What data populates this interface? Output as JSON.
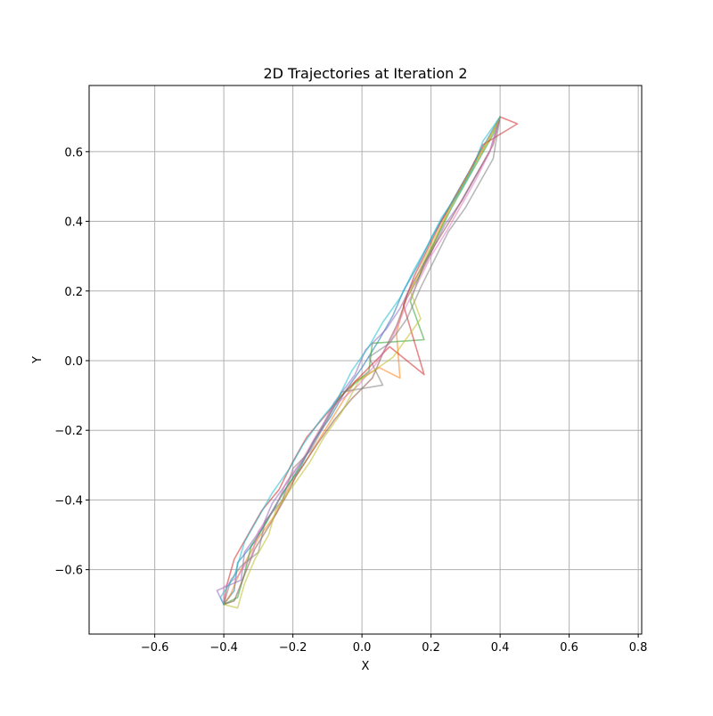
{
  "chart_data": {
    "type": "line",
    "title": "2D Trajectories at Iteration 2",
    "xlabel": "X",
    "ylabel": "Y",
    "xlim": [
      -0.79,
      0.81
    ],
    "ylim": [
      -0.785,
      0.79
    ],
    "xticks": [
      -0.6,
      -0.4,
      -0.2,
      0.0,
      0.2,
      0.4,
      0.6,
      0.8
    ],
    "xtick_labels": [
      "−0.6",
      "−0.4",
      "−0.2",
      "0.0",
      "0.2",
      "0.4",
      "0.6",
      "0.8"
    ],
    "yticks": [
      -0.6,
      -0.4,
      -0.2,
      0.0,
      0.2,
      0.4,
      0.6
    ],
    "ytick_labels": [
      "−0.6",
      "−0.4",
      "−0.2",
      "0.0",
      "0.2",
      "0.4",
      "0.6"
    ],
    "grid": true,
    "legend": "none",
    "series_opacity": 0.55,
    "start_point": [
      -0.4,
      -0.7
    ],
    "end_point": [
      0.4,
      0.7
    ],
    "approx_trajectory_count": 10,
    "colors": [
      "#1f77b4",
      "#ff7f0e",
      "#2ca02c",
      "#d62728",
      "#9467bd",
      "#8c564b",
      "#e377c2",
      "#7f7f7f",
      "#bcbd22",
      "#17becf"
    ],
    "series": [
      {
        "points": [
          [
            -0.4,
            -0.7
          ],
          [
            -0.37,
            -0.66
          ],
          [
            -0.36,
            -0.58
          ],
          [
            -0.31,
            -0.52
          ],
          [
            -0.27,
            -0.45
          ],
          [
            -0.23,
            -0.38
          ],
          [
            -0.18,
            -0.31
          ],
          [
            -0.14,
            -0.23
          ],
          [
            -0.09,
            -0.16
          ],
          [
            -0.05,
            -0.09
          ],
          [
            0.0,
            -0.02
          ],
          [
            0.05,
            0.06
          ],
          [
            0.09,
            0.13
          ],
          [
            0.12,
            0.2
          ],
          [
            0.16,
            0.27
          ],
          [
            0.2,
            0.35
          ],
          [
            0.24,
            0.42
          ],
          [
            0.28,
            0.49
          ],
          [
            0.32,
            0.56
          ],
          [
            0.36,
            0.63
          ],
          [
            0.4,
            0.7
          ]
        ]
      },
      {
        "points": [
          [
            -0.4,
            -0.7
          ],
          [
            -0.38,
            -0.67
          ],
          [
            -0.35,
            -0.6
          ],
          [
            -0.3,
            -0.51
          ],
          [
            -0.25,
            -0.44
          ],
          [
            -0.21,
            -0.36
          ],
          [
            -0.17,
            -0.3
          ],
          [
            -0.12,
            -0.22
          ],
          [
            -0.07,
            -0.14
          ],
          [
            -0.02,
            -0.06
          ],
          [
            0.05,
            -0.02
          ],
          [
            0.11,
            -0.05
          ],
          [
            0.1,
            0.08
          ],
          [
            0.13,
            0.19
          ],
          [
            0.17,
            0.26
          ],
          [
            0.21,
            0.34
          ],
          [
            0.25,
            0.43
          ],
          [
            0.29,
            0.5
          ],
          [
            0.33,
            0.57
          ],
          [
            0.37,
            0.64
          ],
          [
            0.4,
            0.7
          ]
        ]
      },
      {
        "points": [
          [
            -0.4,
            -0.7
          ],
          [
            -0.36,
            -0.68
          ],
          [
            -0.34,
            -0.61
          ],
          [
            -0.32,
            -0.53
          ],
          [
            -0.28,
            -0.47
          ],
          [
            -0.24,
            -0.4
          ],
          [
            -0.19,
            -0.32
          ],
          [
            -0.15,
            -0.25
          ],
          [
            -0.11,
            -0.18
          ],
          [
            -0.06,
            -0.1
          ],
          [
            0.02,
            -0.03
          ],
          [
            0.03,
            0.05
          ],
          [
            0.18,
            0.06
          ],
          [
            0.14,
            0.17
          ],
          [
            0.18,
            0.28
          ],
          [
            0.22,
            0.36
          ],
          [
            0.26,
            0.44
          ],
          [
            0.3,
            0.51
          ],
          [
            0.34,
            0.58
          ],
          [
            0.38,
            0.65
          ],
          [
            0.4,
            0.7
          ]
        ]
      },
      {
        "points": [
          [
            -0.4,
            -0.7
          ],
          [
            -0.39,
            -0.64
          ],
          [
            -0.37,
            -0.57
          ],
          [
            -0.33,
            -0.5
          ],
          [
            -0.29,
            -0.43
          ],
          [
            -0.24,
            -0.37
          ],
          [
            -0.2,
            -0.29
          ],
          [
            -0.16,
            -0.22
          ],
          [
            -0.1,
            -0.15
          ],
          [
            -0.04,
            -0.08
          ],
          [
            0.04,
            0.0
          ],
          [
            0.08,
            0.04
          ],
          [
            0.18,
            -0.04
          ],
          [
            0.12,
            0.16
          ],
          [
            0.15,
            0.24
          ],
          [
            0.19,
            0.32
          ],
          [
            0.23,
            0.4
          ],
          [
            0.27,
            0.47
          ],
          [
            0.31,
            0.54
          ],
          [
            0.35,
            0.62
          ],
          [
            0.45,
            0.68
          ],
          [
            0.4,
            0.7
          ]
        ]
      },
      {
        "points": [
          [
            -0.4,
            -0.7
          ],
          [
            -0.42,
            -0.66
          ],
          [
            -0.35,
            -0.63
          ],
          [
            -0.34,
            -0.55
          ],
          [
            -0.29,
            -0.48
          ],
          [
            -0.26,
            -0.41
          ],
          [
            -0.21,
            -0.34
          ],
          [
            -0.16,
            -0.27
          ],
          [
            -0.12,
            -0.2
          ],
          [
            -0.08,
            -0.12
          ],
          [
            -0.02,
            -0.04
          ],
          [
            0.01,
            0.03
          ],
          [
            0.07,
            0.09
          ],
          [
            0.11,
            0.15
          ],
          [
            0.15,
            0.23
          ],
          [
            0.2,
            0.31
          ],
          [
            0.24,
            0.39
          ],
          [
            0.29,
            0.46
          ],
          [
            0.33,
            0.53
          ],
          [
            0.37,
            0.6
          ],
          [
            0.4,
            0.7
          ]
        ]
      },
      {
        "points": [
          [
            -0.4,
            -0.7
          ],
          [
            -0.37,
            -0.69
          ],
          [
            -0.33,
            -0.59
          ],
          [
            -0.31,
            -0.54
          ],
          [
            -0.26,
            -0.46
          ],
          [
            -0.22,
            -0.39
          ],
          [
            -0.19,
            -0.33
          ],
          [
            -0.13,
            -0.24
          ],
          [
            -0.08,
            -0.17
          ],
          [
            -0.03,
            -0.11
          ],
          [
            0.03,
            -0.05
          ],
          [
            0.06,
            0.02
          ],
          [
            0.1,
            0.1
          ],
          [
            0.13,
            0.18
          ],
          [
            0.17,
            0.25
          ],
          [
            0.21,
            0.33
          ],
          [
            0.26,
            0.41
          ],
          [
            0.3,
            0.48
          ],
          [
            0.34,
            0.55
          ],
          [
            0.38,
            0.62
          ],
          [
            0.4,
            0.7
          ]
        ]
      },
      {
        "points": [
          [
            -0.4,
            -0.7
          ],
          [
            -0.4,
            -0.65
          ],
          [
            -0.36,
            -0.62
          ],
          [
            -0.32,
            -0.56
          ],
          [
            -0.3,
            -0.49
          ],
          [
            -0.25,
            -0.42
          ],
          [
            -0.22,
            -0.35
          ],
          [
            -0.17,
            -0.28
          ],
          [
            -0.13,
            -0.21
          ],
          [
            -0.08,
            -0.13
          ],
          [
            -0.01,
            -0.07
          ],
          [
            0.04,
            -0.01
          ],
          [
            0.09,
            0.07
          ],
          [
            0.12,
            0.14
          ],
          [
            0.16,
            0.22
          ],
          [
            0.2,
            0.3
          ],
          [
            0.25,
            0.38
          ],
          [
            0.29,
            0.45
          ],
          [
            0.33,
            0.52
          ],
          [
            0.37,
            0.6
          ],
          [
            0.4,
            0.7
          ]
        ]
      },
      {
        "points": [
          [
            -0.4,
            -0.7
          ],
          [
            -0.38,
            -0.63
          ],
          [
            -0.35,
            -0.59
          ],
          [
            -0.3,
            -0.55
          ],
          [
            -0.28,
            -0.46
          ],
          [
            -0.23,
            -0.4
          ],
          [
            -0.2,
            -0.31
          ],
          [
            -0.15,
            -0.26
          ],
          [
            -0.1,
            -0.17
          ],
          [
            -0.06,
            -0.09
          ],
          [
            0.06,
            -0.07
          ],
          [
            0.02,
            0.01
          ],
          [
            0.08,
            0.05
          ],
          [
            0.13,
            0.12
          ],
          [
            0.17,
            0.21
          ],
          [
            0.21,
            0.29
          ],
          [
            0.25,
            0.37
          ],
          [
            0.3,
            0.44
          ],
          [
            0.34,
            0.51
          ],
          [
            0.38,
            0.58
          ],
          [
            0.4,
            0.7
          ]
        ]
      },
      {
        "points": [
          [
            -0.4,
            -0.7
          ],
          [
            -0.36,
            -0.71
          ],
          [
            -0.34,
            -0.64
          ],
          [
            -0.31,
            -0.57
          ],
          [
            -0.27,
            -0.5
          ],
          [
            -0.25,
            -0.43
          ],
          [
            -0.2,
            -0.36
          ],
          [
            -0.15,
            -0.29
          ],
          [
            -0.11,
            -0.22
          ],
          [
            -0.06,
            -0.15
          ],
          [
            -0.01,
            -0.06
          ],
          [
            0.09,
            0.01
          ],
          [
            0.17,
            0.12
          ],
          [
            0.14,
            0.2
          ],
          [
            0.18,
            0.29
          ],
          [
            0.22,
            0.37
          ],
          [
            0.26,
            0.45
          ],
          [
            0.3,
            0.52
          ],
          [
            0.34,
            0.59
          ],
          [
            0.38,
            0.66
          ],
          [
            0.4,
            0.7
          ]
        ]
      },
      {
        "points": [
          [
            -0.4,
            -0.7
          ],
          [
            -0.41,
            -0.68
          ],
          [
            -0.37,
            -0.62
          ],
          [
            -0.34,
            -0.52
          ],
          [
            -0.3,
            -0.45
          ],
          [
            -0.26,
            -0.38
          ],
          [
            -0.21,
            -0.31
          ],
          [
            -0.17,
            -0.24
          ],
          [
            -0.12,
            -0.17
          ],
          [
            -0.07,
            -0.11
          ],
          [
            -0.03,
            -0.03
          ],
          [
            0.02,
            0.04
          ],
          [
            0.06,
            0.11
          ],
          [
            0.11,
            0.18
          ],
          [
            0.15,
            0.26
          ],
          [
            0.19,
            0.33
          ],
          [
            0.23,
            0.41
          ],
          [
            0.28,
            0.48
          ],
          [
            0.32,
            0.55
          ],
          [
            0.35,
            0.63
          ],
          [
            0.4,
            0.7
          ]
        ]
      }
    ]
  }
}
